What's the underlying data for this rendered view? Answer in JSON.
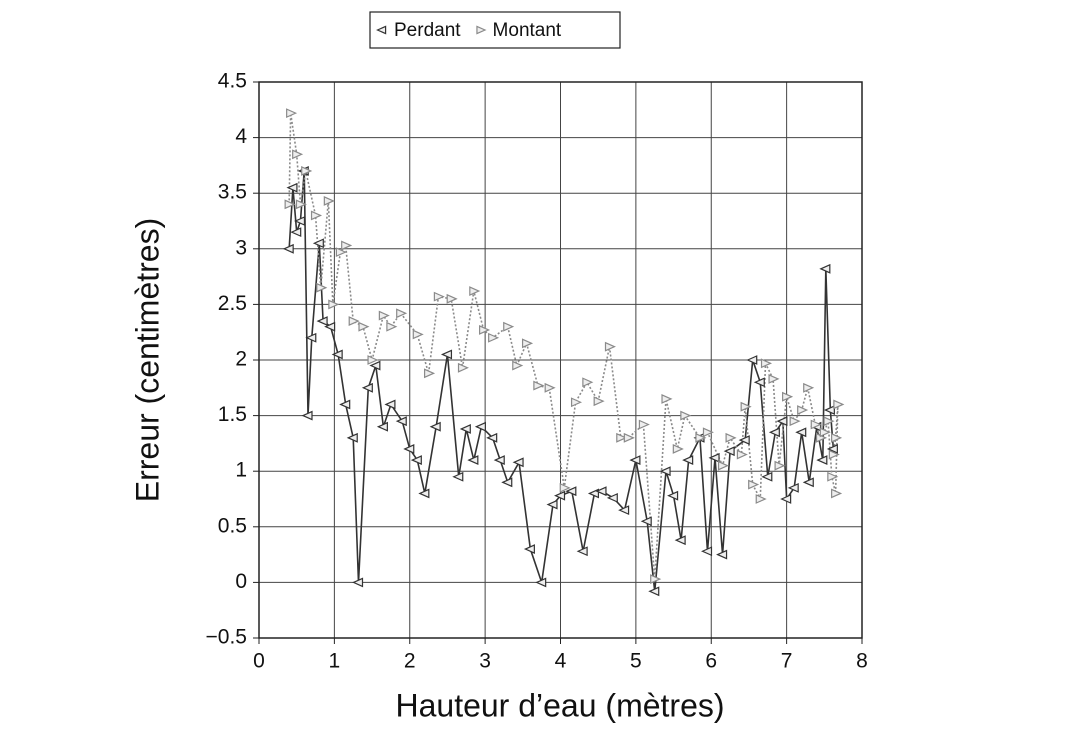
{
  "chart_data": {
    "type": "line",
    "x_label": "Hauteur d’eau (mètres)",
    "y_label": "Erreur (centimètres)",
    "xlim": [
      0,
      8
    ],
    "xticks": [
      0,
      1,
      2,
      3,
      4,
      5,
      6,
      7,
      8
    ],
    "ylim": [
      -0.5,
      4.5
    ],
    "yticks": [
      {
        "value": -0.5,
        "label": "−0.5"
      },
      0,
      0.5,
      1,
      {
        "value": 1.5,
        "label": "1.5"
      },
      2,
      2.5,
      3,
      3.5,
      4,
      4.5
    ],
    "grid": true,
    "legend": "top",
    "series": [
      {
        "name": "Perdant",
        "color": "#333333",
        "marker": "triangle-left",
        "line_style": "solid",
        "x": [
          0.4,
          0.45,
          0.5,
          0.55,
          0.6,
          0.65,
          0.7,
          0.8,
          0.85,
          0.95,
          1.05,
          1.15,
          1.25,
          1.32,
          1.45,
          1.55,
          1.65,
          1.75,
          1.9,
          2.0,
          2.1,
          2.2,
          2.35,
          2.5,
          2.65,
          2.75,
          2.85,
          2.95,
          3.1,
          3.2,
          3.3,
          3.45,
          3.6,
          3.75,
          3.9,
          4.0,
          4.15,
          4.3,
          4.45,
          4.55,
          4.7,
          4.85,
          5.0,
          5.15,
          5.25,
          5.4,
          5.5,
          5.6,
          5.7,
          5.85,
          5.95,
          6.05,
          6.15,
          6.25,
          6.45,
          6.55,
          6.65,
          6.75,
          6.85,
          6.95,
          7.0,
          7.1,
          7.2,
          7.3,
          7.4,
          7.48,
          7.52,
          7.58,
          7.62
        ],
        "values": [
          3.0,
          3.55,
          3.15,
          3.25,
          3.7,
          1.5,
          2.2,
          3.05,
          2.35,
          2.3,
          2.05,
          1.6,
          1.3,
          0.0,
          1.75,
          1.95,
          1.4,
          1.6,
          1.45,
          1.2,
          1.1,
          0.8,
          1.4,
          2.05,
          0.95,
          1.38,
          1.1,
          1.4,
          1.3,
          1.1,
          0.9,
          1.08,
          0.3,
          0.0,
          0.7,
          0.78,
          0.82,
          0.28,
          0.8,
          0.82,
          0.76,
          0.65,
          1.1,
          0.55,
          -0.08,
          1.0,
          0.78,
          0.38,
          1.1,
          1.3,
          0.28,
          1.12,
          0.25,
          1.18,
          1.28,
          2.0,
          1.8,
          0.95,
          1.35,
          1.45,
          0.75,
          0.85,
          1.35,
          0.9,
          1.4,
          1.1,
          2.82,
          1.55,
          1.2
        ]
      },
      {
        "name": "Montant",
        "color": "#8a8a8a",
        "marker": "triangle-right",
        "line_style": "dotted",
        "x": [
          0.4,
          0.42,
          0.5,
          0.55,
          0.62,
          0.75,
          0.82,
          0.92,
          0.98,
          1.08,
          1.15,
          1.25,
          1.38,
          1.5,
          1.65,
          1.75,
          1.88,
          2.1,
          2.25,
          2.38,
          2.55,
          2.7,
          2.85,
          2.98,
          3.1,
          3.3,
          3.42,
          3.55,
          3.7,
          3.85,
          4.05,
          4.2,
          4.35,
          4.5,
          4.65,
          4.8,
          4.9,
          5.1,
          5.25,
          5.4,
          5.55,
          5.65,
          5.85,
          5.95,
          6.15,
          6.25,
          6.4,
          6.45,
          6.55,
          6.65,
          6.72,
          6.82,
          6.9,
          7.0,
          7.1,
          7.2,
          7.28,
          7.38,
          7.45,
          7.5,
          7.55,
          7.6,
          7.65,
          7.68,
          7.65,
          7.62
        ],
        "values": [
          3.4,
          4.22,
          3.85,
          3.4,
          3.7,
          3.3,
          2.65,
          3.43,
          2.5,
          2.97,
          3.03,
          2.35,
          2.3,
          2.0,
          2.4,
          2.3,
          2.42,
          2.23,
          1.88,
          2.57,
          2.55,
          1.93,
          2.62,
          2.27,
          2.2,
          2.3,
          1.95,
          2.15,
          1.77,
          1.75,
          0.85,
          1.62,
          1.8,
          1.63,
          2.12,
          1.3,
          1.3,
          1.42,
          0.03,
          1.65,
          1.2,
          1.5,
          1.3,
          1.35,
          1.05,
          1.3,
          1.15,
          1.58,
          0.88,
          0.75,
          1.97,
          1.83,
          1.05,
          1.67,
          1.45,
          1.55,
          1.75,
          1.42,
          1.3,
          1.35,
          1.45,
          0.95,
          0.8,
          1.6,
          1.3,
          1.15
        ]
      }
    ]
  }
}
